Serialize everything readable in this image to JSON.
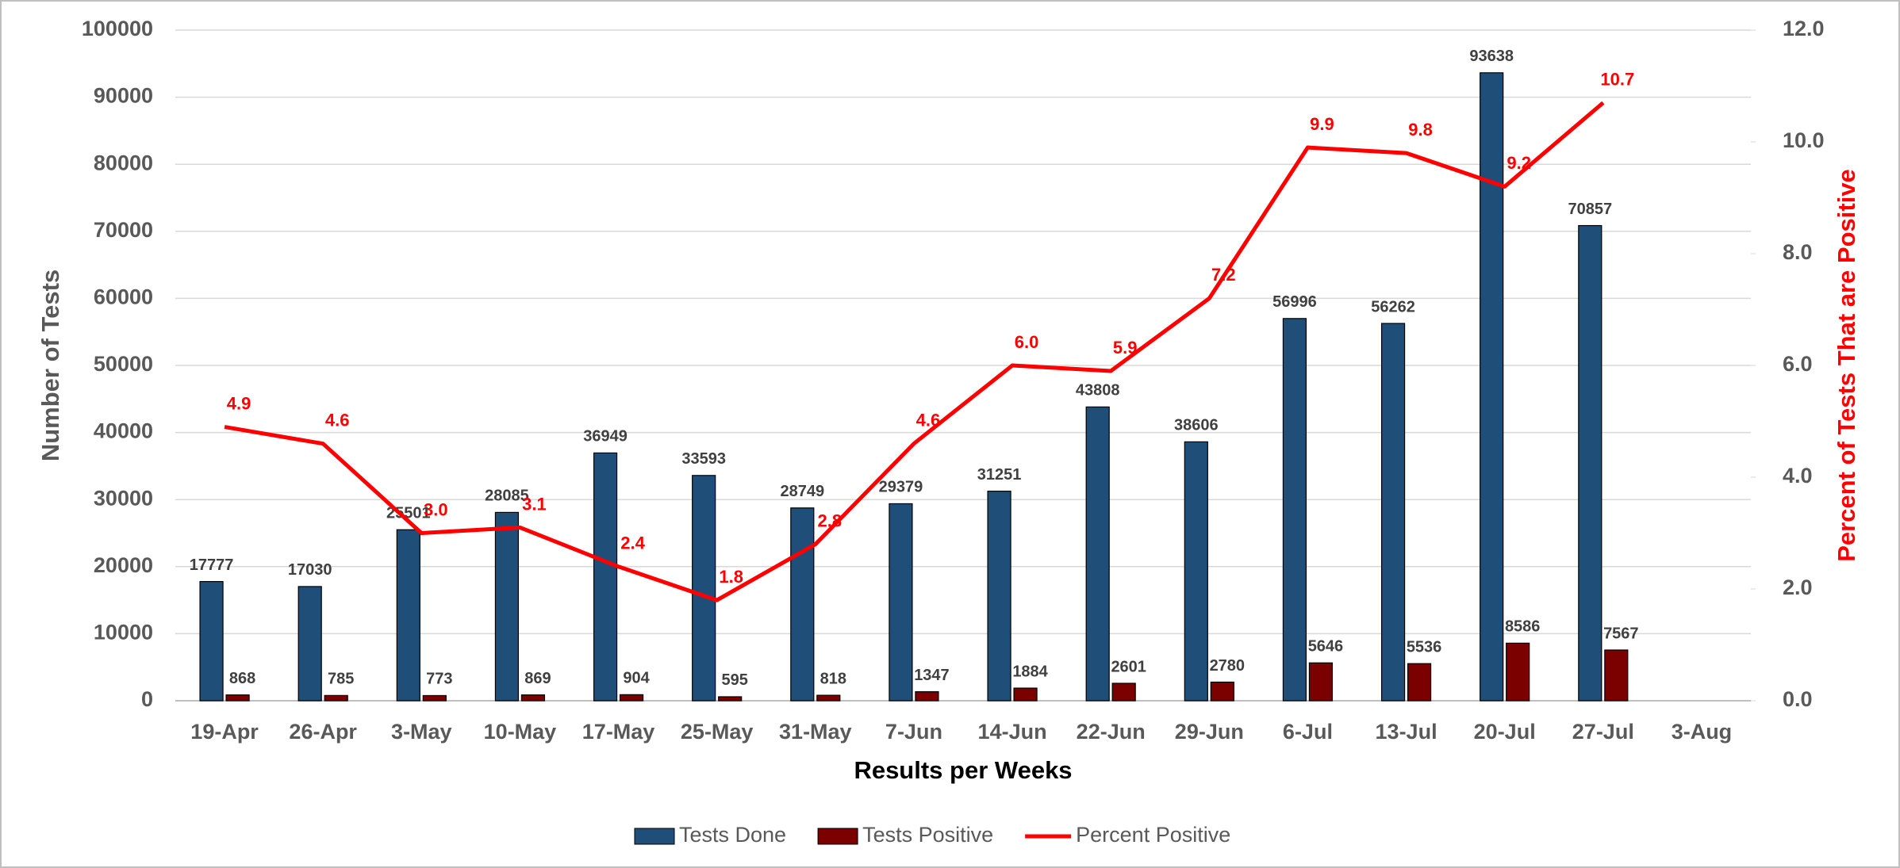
{
  "chart_data": {
    "type": "bar",
    "xlabel": "Results per Weeks",
    "ylabel": "Number of Tests",
    "y2label": "Percent of Tests That are Positive",
    "categories": [
      "19-Apr",
      "26-Apr",
      "3-May",
      "10-May",
      "17-May",
      "25-May",
      "31-May",
      "7-Jun",
      "14-Jun",
      "22-Jun",
      "29-Jun",
      "6-Jul",
      "13-Jul",
      "20-Jul",
      "27-Jul",
      "3-Aug"
    ],
    "series": [
      {
        "name": "Tests Done",
        "type": "bar",
        "color": "#1f4e79",
        "values": [
          17777,
          17030,
          25501,
          28085,
          36949,
          33593,
          28749,
          29379,
          31251,
          43808,
          38606,
          56996,
          56262,
          93638,
          70857,
          null
        ]
      },
      {
        "name": "Tests Positive",
        "type": "bar",
        "color": "#7b0000",
        "values": [
          868,
          785,
          773,
          869,
          904,
          595,
          818,
          1347,
          1884,
          2601,
          2780,
          5646,
          5536,
          8586,
          7567,
          null
        ]
      },
      {
        "name": "Percent Positive",
        "type": "line",
        "axis": "y2",
        "color": "#ff0000",
        "values": [
          4.9,
          4.6,
          3.0,
          3.1,
          2.4,
          1.8,
          2.8,
          4.6,
          6.0,
          5.9,
          7.2,
          9.9,
          9.8,
          9.2,
          10.7,
          null
        ],
        "value_labels": [
          "4.9",
          "4.6",
          "3.0",
          "3.1",
          "2.4",
          "1.8",
          "2.8",
          "4.6",
          "6.0",
          "5.9",
          "7.2",
          "9.9",
          "9.8",
          "9.2",
          "10.7",
          null
        ]
      }
    ],
    "ylim": [
      0,
      100000
    ],
    "yticks": [
      0,
      10000,
      20000,
      30000,
      40000,
      50000,
      60000,
      70000,
      80000,
      90000,
      100000
    ],
    "y2lim": [
      0,
      12
    ],
    "y2ticks": [
      {
        "value": 0,
        "label": "0.0"
      },
      {
        "value": 2,
        "label": "2.0"
      },
      {
        "value": 4,
        "label": "4.0"
      },
      {
        "value": 6,
        "label": "6.0"
      },
      {
        "value": 8,
        "label": "8.0"
      },
      {
        "value": 10,
        "label": "10.0"
      },
      {
        "value": 12,
        "label": "12.0"
      }
    ],
    "grid": true,
    "legend": "bottom"
  }
}
